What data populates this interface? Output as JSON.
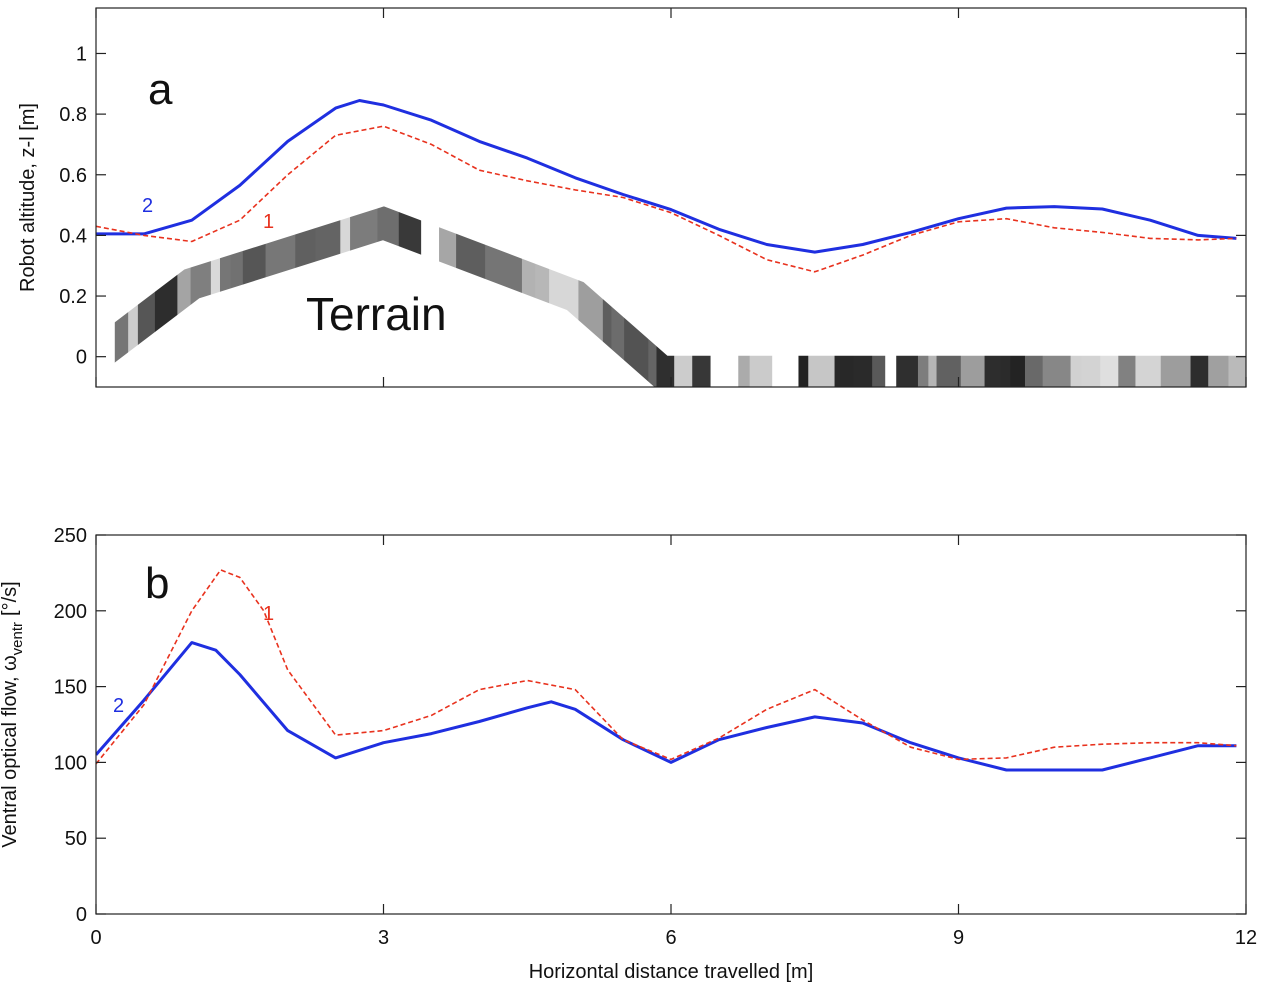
{
  "chart_data": [
    {
      "type": "line",
      "ylabel": "Robot altitude, z-l [m]",
      "annotations": [
        "a",
        "Terrain"
      ],
      "xlim": [
        0,
        12
      ],
      "ylim": [
        -0.1,
        1.15
      ],
      "xticks": [
        0,
        3,
        6,
        9,
        12
      ],
      "xticklabels": false,
      "yticks": [
        0,
        0.2,
        0.4,
        0.6,
        0.8,
        1
      ],
      "terrain": {
        "x": [
          0,
          1,
          3,
          5,
          5.9,
          6.1,
          12
        ],
        "y": [
          0.0,
          0.24,
          0.44,
          0.2,
          -0.05,
          -0.05,
          -0.05
        ]
      },
      "series": [
        {
          "name": "2",
          "color": "#1f2fe0",
          "style": "solid",
          "x": [
            0,
            0.5,
            1,
            1.5,
            2,
            2.5,
            2.75,
            3,
            3.5,
            4,
            4.5,
            5,
            5.5,
            6,
            6.5,
            7,
            7.5,
            8,
            8.5,
            9,
            9.5,
            10,
            10.5,
            11,
            11.5,
            11.9
          ],
          "values": [
            0.405,
            0.405,
            0.45,
            0.565,
            0.71,
            0.82,
            0.845,
            0.83,
            0.78,
            0.71,
            0.655,
            0.59,
            0.535,
            0.485,
            0.42,
            0.37,
            0.345,
            0.37,
            0.41,
            0.455,
            0.49,
            0.495,
            0.487,
            0.45,
            0.4,
            0.39
          ]
        },
        {
          "name": "1",
          "color": "#e8321e",
          "style": "dashed",
          "x": [
            0,
            0.5,
            1,
            1.5,
            2,
            2.5,
            3,
            3.5,
            4,
            4.5,
            5,
            5.5,
            6,
            6.5,
            7,
            7.5,
            8,
            8.5,
            9,
            9.5,
            10,
            10.5,
            11,
            11.5,
            11.9
          ],
          "values": [
            0.43,
            0.4,
            0.38,
            0.45,
            0.6,
            0.73,
            0.76,
            0.7,
            0.615,
            0.58,
            0.55,
            0.525,
            0.475,
            0.4,
            0.32,
            0.28,
            0.335,
            0.4,
            0.445,
            0.455,
            0.425,
            0.41,
            0.39,
            0.385,
            0.39
          ]
        }
      ]
    },
    {
      "type": "line",
      "ylabel": [
        "Ventral optical flow, ω",
        "ventr",
        "[°/s]"
      ],
      "xlabel": "Horizontal distance travelled [m]",
      "annotations": [
        "b"
      ],
      "xlim": [
        0,
        12
      ],
      "ylim": [
        0,
        250
      ],
      "xticks": [
        0,
        3,
        6,
        9,
        12
      ],
      "xticklabels": true,
      "yticks": [
        0,
        50,
        100,
        150,
        200,
        250
      ],
      "series": [
        {
          "name": "2",
          "color": "#1f2fe0",
          "style": "solid",
          "x": [
            0,
            0.5,
            1,
            1.25,
            1.5,
            2,
            2.5,
            3,
            3.5,
            4,
            4.5,
            4.75,
            5,
            5.5,
            6,
            6.5,
            7,
            7.5,
            8,
            8.5,
            9,
            9.5,
            10,
            10.5,
            11,
            11.5,
            11.9
          ],
          "values": [
            105,
            141,
            179,
            174,
            158,
            121,
            103,
            113,
            119,
            127,
            136,
            140,
            135,
            115,
            100,
            115,
            123,
            130,
            126,
            113,
            103,
            95,
            95,
            95,
            103,
            111,
            111
          ]
        },
        {
          "name": "1",
          "color": "#e8321e",
          "style": "dashed",
          "x": [
            0,
            0.5,
            1,
            1.3,
            1.5,
            1.75,
            2,
            2.5,
            3,
            3.5,
            4,
            4.5,
            5,
            5.5,
            6,
            6.5,
            7,
            7.5,
            8,
            8.5,
            9,
            9.5,
            10,
            10.5,
            11,
            11.5,
            11.9
          ],
          "values": [
            99,
            138,
            200,
            227,
            222,
            200,
            161,
            118,
            121,
            131,
            148,
            154,
            148,
            115,
            102,
            116,
            135,
            148,
            128,
            110,
            102,
            103,
            110,
            112,
            113,
            113,
            111
          ]
        }
      ]
    }
  ]
}
